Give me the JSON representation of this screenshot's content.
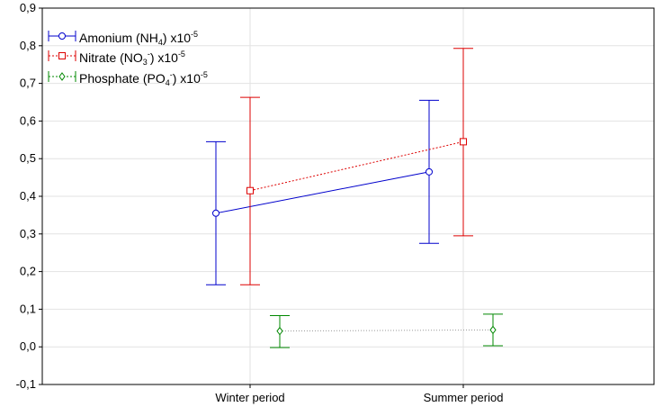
{
  "chart_data": {
    "type": "line",
    "categories": [
      "Winter period",
      "Summer period"
    ],
    "ylim": [
      -0.1,
      0.9
    ],
    "yticks": [
      "-0,1",
      "0,0",
      "0,1",
      "0,2",
      "0,3",
      "0,4",
      "0,5",
      "0,6",
      "0,7",
      "0,8",
      "0,9"
    ],
    "ytick_values": [
      -0.1,
      0.0,
      0.1,
      0.2,
      0.3,
      0.4,
      0.5,
      0.6,
      0.7,
      0.8,
      0.9
    ],
    "grid": true,
    "legend_position": "top-left",
    "series": [
      {
        "name": "Amonium (NH4) x10-5",
        "legend_parts": [
          "Amonium (NH",
          "4",
          ")  x10",
          "-5"
        ],
        "color": "#0000cc",
        "line_style": "solid",
        "marker": "circle",
        "values": [
          0.355,
          0.465
        ],
        "error_low": [
          0.165,
          0.275
        ],
        "error_high": [
          0.545,
          0.655
        ]
      },
      {
        "name": "Nitrate (NO3-) x10-5",
        "legend_parts": [
          "Nitrate (NO",
          "3",
          "-",
          ") x10",
          "-5"
        ],
        "color": "#dd0000",
        "line_style": "dotted",
        "marker": "square",
        "values": [
          0.415,
          0.545
        ],
        "error_low": [
          0.165,
          0.295
        ],
        "error_high": [
          0.663,
          0.793
        ]
      },
      {
        "name": "Phosphate (PO4-) x10-5",
        "legend_parts": [
          "Phosphate (PO",
          "4",
          "-",
          ") x10",
          "-5"
        ],
        "color": "#008800",
        "line_style": "dotted",
        "marker": "diamond",
        "values": [
          0.042,
          0.045
        ],
        "error_low": [
          -0.002,
          0.003
        ],
        "error_high": [
          0.083,
          0.087
        ]
      }
    ]
  }
}
